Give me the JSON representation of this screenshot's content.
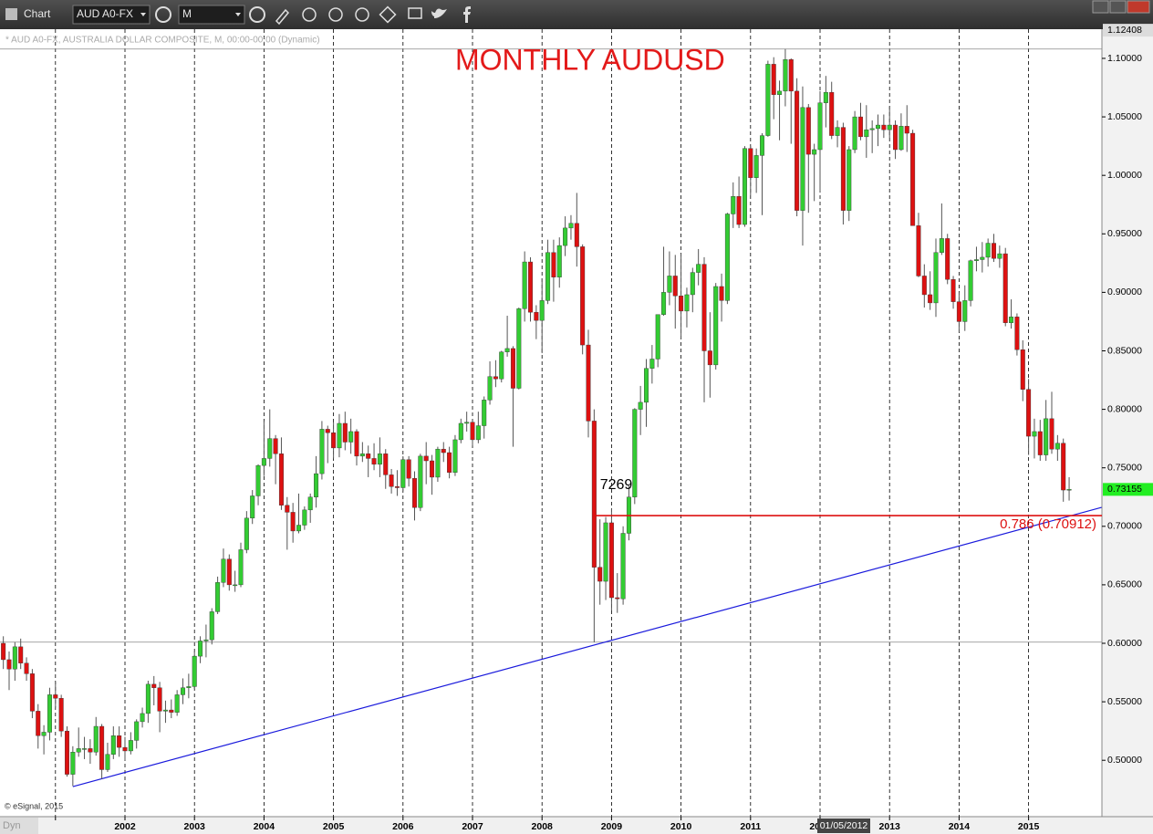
{
  "toolbar": {
    "title": "Chart",
    "symbol": "AUD A0-FX",
    "interval": "M"
  },
  "footer": {
    "mode": "Dyn"
  },
  "chart_data": {
    "type": "candlestick",
    "title": "MONTHLY AUDUSD",
    "subtitle": "* AUD A0-FX, AUSTRALIA DOLLAR COMPOSITE, M, 00:00-00:00 (Dynamic)",
    "copyright": "© eSignal, 2015",
    "cursor_label": "01/05/2012",
    "up_color": "#33cc33",
    "down_color": "#dd1111",
    "categories": [
      null,
      null,
      null,
      null,
      null,
      null,
      null,
      null,
      null,
      null,
      null,
      null,
      null,
      null,
      null,
      null,
      null,
      null,
      null,
      null,
      null,
      "2002",
      null,
      null,
      null,
      null,
      null,
      null,
      null,
      null,
      null,
      null,
      null,
      "2003",
      null,
      null,
      null,
      null,
      null,
      null,
      null,
      null,
      null,
      null,
      null,
      "2004",
      null,
      null,
      null,
      null,
      null,
      null,
      null,
      null,
      null,
      null,
      null,
      "2005",
      null,
      null,
      null,
      null,
      null,
      null,
      null,
      null,
      null,
      null,
      null,
      "2006",
      null,
      null,
      null,
      null,
      null,
      null,
      null,
      null,
      null,
      null,
      null,
      "2007",
      null,
      null,
      null,
      null,
      null,
      null,
      null,
      null,
      null,
      null,
      null,
      "2008",
      null,
      null,
      null,
      null,
      null,
      null,
      null,
      null,
      null,
      null,
      null,
      "2009",
      null,
      null,
      null,
      null,
      null,
      null,
      null,
      null,
      null,
      null,
      null,
      "2010",
      null,
      null,
      null,
      null,
      null,
      null,
      null,
      null,
      null,
      null,
      null,
      "2011",
      null,
      null,
      null,
      null,
      null,
      null,
      null,
      null,
      null,
      null,
      null,
      "2012",
      null,
      null,
      null,
      null,
      null,
      null,
      null,
      null,
      null,
      null,
      null,
      "2013",
      null,
      null,
      null,
      null,
      null,
      null,
      null,
      null,
      null,
      null,
      null,
      "2014",
      null,
      null,
      null,
      null,
      null,
      null,
      null,
      null,
      null,
      null,
      null,
      "2015",
      null,
      null,
      null,
      null,
      null,
      null,
      null
    ],
    "open": [
      0.6,
      0.586,
      0.578,
      0.597,
      0.583,
      0.574,
      0.542,
      0.521,
      0.524,
      0.556,
      0.553,
      0.525,
      0.488,
      0.507,
      0.51,
      0.51,
      0.507,
      0.529,
      0.492,
      0.505,
      0.521,
      0.511,
      0.508,
      0.517,
      0.533,
      0.54,
      0.565,
      0.562,
      0.542,
      0.543,
      0.541,
      0.556,
      0.562,
      0.563,
      0.589,
      0.602,
      0.603,
      0.627,
      0.652,
      0.672,
      0.65,
      0.65,
      0.68,
      0.707,
      0.726,
      0.752,
      0.758,
      0.775,
      0.762,
      0.718,
      0.712,
      0.696,
      0.701,
      0.714,
      0.725,
      0.745,
      0.783,
      0.78,
      0.767,
      0.788,
      0.772,
      0.781,
      0.76,
      0.762,
      0.758,
      0.753,
      0.762,
      0.744,
      0.734,
      0.733,
      0.757,
      0.741,
      0.716,
      0.76,
      0.756,
      0.742,
      0.766,
      0.763,
      0.746,
      0.774,
      0.788,
      0.789,
      0.774,
      0.786,
      0.808,
      0.828,
      0.826,
      0.849,
      0.852,
      0.818,
      0.886,
      0.926,
      0.883,
      0.876,
      0.893,
      0.934,
      0.913,
      0.94,
      0.955,
      0.959,
      0.939,
      0.855,
      0.79,
      0.665,
      0.653,
      0.703,
      0.639,
      0.638,
      0.694,
      0.725,
      0.8,
      0.806,
      0.835,
      0.843,
      0.881,
      0.9,
      0.914,
      0.897,
      0.884,
      0.898,
      0.917,
      0.924,
      0.85,
      0.838,
      0.905,
      0.893,
      0.967,
      0.982,
      0.958,
      1.023,
      0.998,
      1.017,
      1.034,
      1.095,
      1.069,
      1.072,
      1.099,
      1.072,
      0.97,
      1.058,
      1.018,
      1.022,
      1.062,
      1.071,
      1.034,
      1.041,
      0.97,
      1.022,
      1.05,
      1.033,
      1.039,
      1.04,
      1.043,
      1.039,
      1.043,
      1.022,
      1.042,
      1.036,
      0.957,
      0.914,
      0.898,
      0.891,
      0.934,
      0.946,
      0.911,
      0.892,
      0.875,
      0.893,
      0.927,
      0.928,
      0.93,
      0.942,
      0.929,
      0.933,
      0.874,
      0.879,
      0.851,
      0.817,
      0.777,
      0.781,
      0.761,
      0.792,
      0.766,
      0.771,
      0.731
    ],
    "high": [
      0.606,
      0.593,
      0.601,
      0.604,
      0.588,
      0.578,
      0.548,
      0.53,
      0.562,
      0.567,
      0.556,
      0.529,
      0.512,
      0.528,
      0.52,
      0.518,
      0.537,
      0.531,
      0.515,
      0.529,
      0.529,
      0.52,
      0.524,
      0.535,
      0.545,
      0.568,
      0.572,
      0.567,
      0.551,
      0.552,
      0.56,
      0.57,
      0.574,
      0.593,
      0.606,
      0.616,
      0.63,
      0.657,
      0.681,
      0.676,
      0.662,
      0.686,
      0.713,
      0.731,
      0.753,
      0.79,
      0.8,
      0.778,
      0.776,
      0.725,
      0.72,
      0.728,
      0.717,
      0.728,
      0.76,
      0.79,
      0.786,
      0.789,
      0.796,
      0.798,
      0.792,
      0.783,
      0.772,
      0.769,
      0.771,
      0.776,
      0.766,
      0.749,
      0.748,
      0.76,
      0.76,
      0.747,
      0.762,
      0.772,
      0.761,
      0.768,
      0.772,
      0.768,
      0.778,
      0.792,
      0.798,
      0.79,
      0.798,
      0.811,
      0.841,
      0.842,
      0.85,
      0.88,
      0.854,
      0.887,
      0.935,
      0.93,
      0.889,
      0.912,
      0.945,
      0.945,
      0.947,
      0.965,
      0.966,
      0.985,
      0.941,
      0.868,
      0.8,
      0.706,
      0.708,
      0.715,
      0.66,
      0.7,
      0.735,
      0.801,
      0.82,
      0.843,
      0.855,
      0.881,
      0.939,
      0.935,
      0.932,
      0.933,
      0.904,
      0.921,
      0.937,
      0.93,
      0.883,
      0.908,
      0.916,
      0.968,
      0.994,
      0.999,
      1.025,
      1.025,
      1.023,
      1.036,
      1.098,
      1.101,
      1.081,
      1.108,
      1.1,
      1.083,
      1.076,
      1.061,
      1.027,
      1.072,
      1.085,
      1.08,
      1.047,
      1.045,
      1.025,
      1.055,
      1.062,
      1.06,
      1.047,
      1.052,
      1.052,
      1.059,
      1.047,
      1.053,
      1.06,
      1.039,
      0.968,
      0.924,
      0.918,
      0.946,
      0.976,
      0.95,
      0.914,
      0.9,
      0.906,
      0.928,
      0.939,
      0.943,
      0.946,
      0.95,
      0.94,
      0.938,
      0.894,
      0.882,
      0.859,
      0.826,
      0.792,
      0.791,
      0.808,
      0.815,
      0.778,
      0.775,
      0.742
    ],
    "low": [
      0.578,
      0.56,
      0.568,
      0.578,
      0.568,
      0.536,
      0.51,
      0.505,
      0.517,
      0.545,
      0.52,
      0.486,
      0.478,
      0.503,
      0.501,
      0.497,
      0.504,
      0.484,
      0.49,
      0.501,
      0.503,
      0.5,
      0.505,
      0.51,
      0.528,
      0.532,
      0.547,
      0.524,
      0.532,
      0.536,
      0.538,
      0.548,
      0.553,
      0.561,
      0.583,
      0.588,
      0.599,
      0.625,
      0.648,
      0.645,
      0.644,
      0.648,
      0.677,
      0.702,
      0.718,
      0.743,
      0.751,
      0.736,
      0.714,
      0.68,
      0.686,
      0.694,
      0.697,
      0.703,
      0.716,
      0.74,
      0.754,
      0.758,
      0.759,
      0.765,
      0.762,
      0.752,
      0.755,
      0.742,
      0.748,
      0.742,
      0.732,
      0.728,
      0.726,
      0.73,
      0.734,
      0.705,
      0.713,
      0.736,
      0.727,
      0.738,
      0.755,
      0.741,
      0.743,
      0.771,
      0.781,
      0.769,
      0.771,
      0.775,
      0.804,
      0.819,
      0.823,
      0.845,
      0.768,
      0.817,
      0.875,
      0.875,
      0.86,
      0.848,
      0.89,
      0.892,
      0.904,
      0.931,
      0.945,
      0.922,
      0.847,
      0.776,
      0.601,
      0.633,
      0.637,
      0.628,
      0.626,
      0.633,
      0.688,
      0.719,
      0.778,
      0.785,
      0.822,
      0.836,
      0.88,
      0.889,
      0.869,
      0.86,
      0.87,
      0.883,
      0.906,
      0.806,
      0.81,
      0.834,
      0.875,
      0.89,
      0.955,
      0.955,
      0.956,
      0.983,
      0.985,
      0.966,
      1.033,
      1.048,
      1.03,
      1.059,
      1.027,
      0.965,
      0.94,
      0.968,
      0.978,
      0.986,
      1.041,
      1.031,
      1.024,
      0.958,
      0.961,
      1.019,
      1.03,
      1.015,
      1.019,
      1.025,
      1.032,
      1.032,
      1.014,
      1.021,
      1.02,
      0.957,
      0.913,
      0.887,
      0.885,
      0.879,
      0.932,
      0.907,
      0.886,
      0.866,
      0.867,
      0.888,
      0.918,
      0.917,
      0.922,
      0.926,
      0.921,
      0.871,
      0.869,
      0.846,
      0.807,
      0.761,
      0.758,
      0.756,
      0.756,
      0.762,
      0.756,
      0.721,
      0.722
    ],
    "close": [
      0.586,
      0.578,
      0.597,
      0.583,
      0.574,
      0.542,
      0.521,
      0.524,
      0.556,
      0.553,
      0.525,
      0.488,
      0.507,
      0.51,
      0.51,
      0.507,
      0.529,
      0.492,
      0.505,
      0.521,
      0.511,
      0.508,
      0.517,
      0.533,
      0.54,
      0.565,
      0.562,
      0.542,
      0.543,
      0.541,
      0.556,
      0.562,
      0.563,
      0.589,
      0.602,
      0.603,
      0.627,
      0.652,
      0.672,
      0.65,
      0.65,
      0.68,
      0.707,
      0.726,
      0.752,
      0.758,
      0.775,
      0.762,
      0.718,
      0.712,
      0.696,
      0.701,
      0.714,
      0.725,
      0.745,
      0.783,
      0.78,
      0.767,
      0.788,
      0.772,
      0.781,
      0.76,
      0.762,
      0.758,
      0.753,
      0.762,
      0.744,
      0.734,
      0.733,
      0.757,
      0.741,
      0.716,
      0.76,
      0.756,
      0.742,
      0.766,
      0.763,
      0.746,
      0.774,
      0.788,
      0.789,
      0.774,
      0.786,
      0.808,
      0.828,
      0.826,
      0.849,
      0.852,
      0.818,
      0.886,
      0.926,
      0.883,
      0.876,
      0.893,
      0.934,
      0.913,
      0.94,
      0.955,
      0.959,
      0.939,
      0.855,
      0.79,
      0.665,
      0.653,
      0.703,
      0.639,
      0.638,
      0.694,
      0.725,
      0.8,
      0.806,
      0.835,
      0.843,
      0.881,
      0.9,
      0.914,
      0.897,
      0.884,
      0.898,
      0.917,
      0.924,
      0.85,
      0.838,
      0.905,
      0.893,
      0.967,
      0.982,
      0.958,
      1.023,
      0.998,
      1.017,
      1.034,
      1.095,
      1.069,
      1.072,
      1.099,
      1.072,
      0.97,
      1.058,
      1.018,
      1.022,
      1.062,
      1.071,
      1.034,
      1.041,
      0.97,
      1.022,
      1.05,
      1.033,
      1.039,
      1.04,
      1.043,
      1.039,
      1.043,
      1.022,
      1.042,
      1.036,
      0.957,
      0.914,
      0.898,
      0.891,
      0.934,
      0.946,
      0.911,
      0.892,
      0.875,
      0.893,
      0.927,
      0.928,
      0.93,
      0.942,
      0.929,
      0.933,
      0.874,
      0.879,
      0.851,
      0.817,
      0.777,
      0.781,
      0.761,
      0.792,
      0.766,
      0.771,
      0.731,
      0.7316
    ],
    "xlim": [
      -0.575,
      189.66
    ],
    "xticks": [
      9,
      21,
      33,
      45,
      57,
      69,
      81,
      93,
      105,
      117,
      129,
      141,
      153,
      165,
      177
    ],
    "xgrid": "dashed",
    "ylim": [
      0.4518,
      1.1265
    ],
    "yticks": [
      {
        "value": 0.5,
        "label": "0.50000"
      },
      {
        "value": 0.55,
        "label": "0.55000"
      },
      {
        "value": 0.6,
        "label": "0.60000"
      },
      {
        "value": 0.65,
        "label": "0.65000"
      },
      {
        "value": 0.7,
        "label": "0.70000"
      },
      {
        "value": 0.75,
        "label": "0.75000"
      },
      {
        "value": 0.8,
        "label": "0.80000"
      },
      {
        "value": 0.85,
        "label": "0.85000"
      },
      {
        "value": 0.9,
        "label": "0.90000"
      },
      {
        "value": 0.95,
        "label": "0.95000"
      },
      {
        "value": 1.0,
        "label": "1.00000"
      },
      {
        "value": 1.05,
        "label": "1.05000"
      },
      {
        "value": 1.1,
        "label": "1.10000"
      }
    ],
    "scale_top": {
      "value": 1.12408,
      "label": "1.12408"
    },
    "last_price": {
      "value": 0.73155,
      "label": "0.73155"
    },
    "last_price_color": "#22ee22",
    "range_lines": [
      1.108,
      0.601
    ],
    "fib_level": {
      "value": 0.70912,
      "label": "0.786 (0.70912)",
      "start": 102,
      "color": "#dd1111"
    },
    "annotation": {
      "text": "7269",
      "x": 103,
      "y": 0.735
    },
    "trendline": {
      "start": [
        12,
        0.4775
      ],
      "end": [
        189.6,
        0.7162
      ],
      "color": "#1a1adc"
    }
  }
}
